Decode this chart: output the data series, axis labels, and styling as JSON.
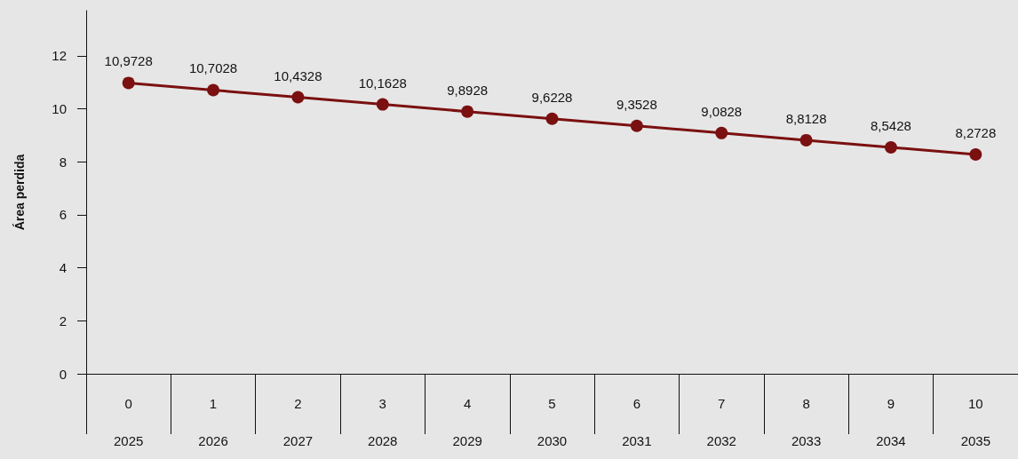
{
  "chart_data": {
    "type": "line",
    "ylabel": "Área perdida",
    "categories": [
      "0\n2025",
      "1\n2026",
      "2\n2027",
      "3\n2028",
      "4\n2029",
      "5\n2030",
      "6\n2031",
      "7\n2032",
      "8\n2033",
      "9\n2034",
      "10\n2035"
    ],
    "series": [
      {
        "color": "#7b1010",
        "values": [
          10.9728,
          10.7028,
          10.4328,
          10.1628,
          9.8928,
          9.6228,
          9.3528,
          9.0828,
          8.8128,
          8.5428,
          8.2728
        ],
        "value_labels": [
          "10,9728",
          "10,7028",
          "10,4328",
          "10,1628",
          "9,8928",
          "9,6228",
          "9,3528",
          "9,0828",
          "8,8128",
          "8,5428",
          "8,2728"
        ]
      }
    ],
    "ylim": [
      0,
      13.7
    ],
    "yticks": [
      0,
      2,
      4,
      6,
      8,
      10,
      12
    ],
    "grid": false,
    "marker": "circle",
    "line_style": "solid"
  }
}
